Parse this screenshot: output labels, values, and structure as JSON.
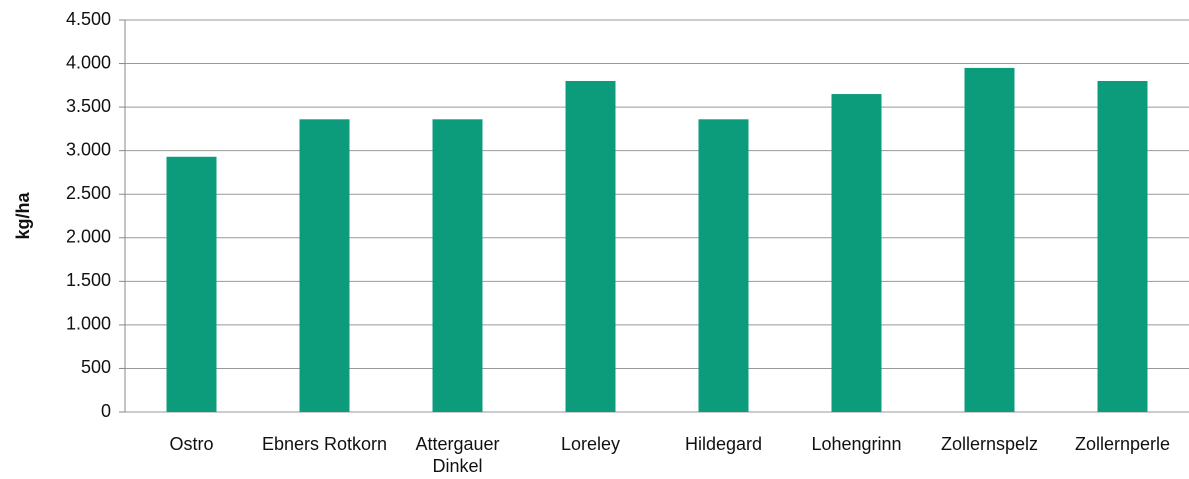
{
  "chart_data": {
    "type": "bar",
    "y_label": "kg/ha",
    "categories": [
      "Ostro",
      "Ebners Rotkorn",
      "Attergauer Dinkel",
      "Loreley",
      "Hildegard",
      "Lohengrinn",
      "Zollernspelz",
      "Zollernperle"
    ],
    "values": [
      2930,
      3360,
      3360,
      3800,
      3360,
      3650,
      3950,
      3800
    ],
    "color": "#0c9c7c",
    "ylim": [
      0,
      4500
    ],
    "yticks": [
      0,
      500,
      {
        "value": 1000,
        "label": "1.000"
      },
      {
        "value": 1500,
        "label": "1.500"
      },
      {
        "value": 2000,
        "label": "2.000"
      },
      {
        "value": 2500,
        "label": "2.500"
      },
      {
        "value": 3000,
        "label": "3.000"
      },
      {
        "value": 3500,
        "label": "3.500"
      },
      {
        "value": 4000,
        "label": "4.000"
      },
      {
        "value": 4500,
        "label": "4.500"
      }
    ],
    "grid": true
  }
}
